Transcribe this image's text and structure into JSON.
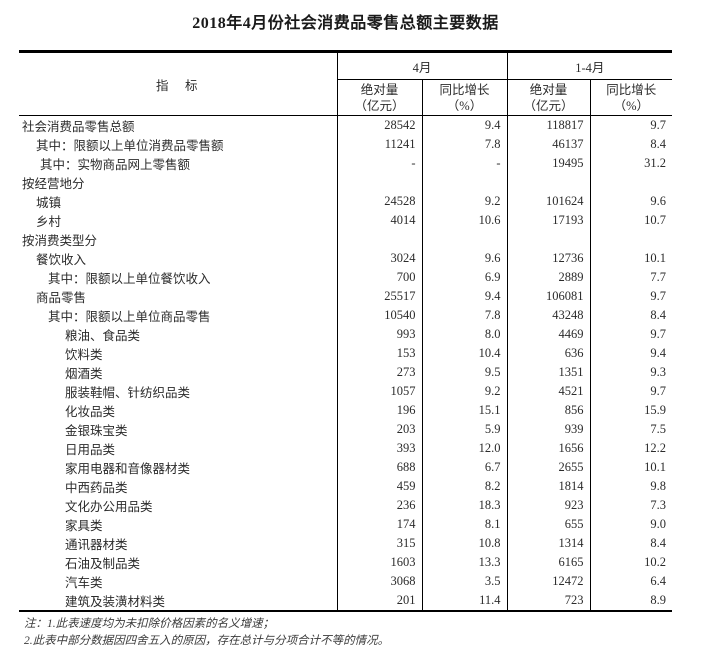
{
  "title": "2018年4月份社会消费品零售总额主要数据",
  "table": {
    "header": {
      "indicator": "指　标",
      "april": "4月",
      "jan_april": "1-4月",
      "sub": {
        "abs_line1": "绝对量",
        "abs_line2": "（亿元）",
        "growth_line1": "同比增长",
        "growth_line2": "（%）"
      }
    },
    "rows": [
      {
        "label": "社会消费品零售总额",
        "indent": 0,
        "cells": [
          "28542",
          "9.4",
          "118817",
          "9.7"
        ]
      },
      {
        "label": "其中：限额以上单位消费品零售额",
        "indent": 1,
        "cells": [
          "11241",
          "7.8",
          "46137",
          "8.4"
        ]
      },
      {
        "label": "其中：实物商品网上零售额",
        "indent": 2,
        "cells": [
          "-",
          "-",
          "19495",
          "31.2"
        ]
      },
      {
        "label": "按经营地分",
        "indent": 0,
        "cells": [
          "",
          "",
          "",
          ""
        ]
      },
      {
        "label": "城镇",
        "indent": 1,
        "cells": [
          "24528",
          "9.2",
          "101624",
          "9.6"
        ]
      },
      {
        "label": "乡村",
        "indent": 1,
        "cells": [
          "4014",
          "10.6",
          "17193",
          "10.7"
        ]
      },
      {
        "label": "按消费类型分",
        "indent": 0,
        "cells": [
          "",
          "",
          "",
          ""
        ]
      },
      {
        "label": "餐饮收入",
        "indent": 1,
        "cells": [
          "3024",
          "9.6",
          "12736",
          "10.1"
        ]
      },
      {
        "label": "其中：限额以上单位餐饮收入",
        "indent": 3,
        "cells": [
          "700",
          "6.9",
          "2889",
          "7.7"
        ]
      },
      {
        "label": "商品零售",
        "indent": 1,
        "cells": [
          "25517",
          "9.4",
          "106081",
          "9.7"
        ]
      },
      {
        "label": "其中：限额以上单位商品零售",
        "indent": 3,
        "cells": [
          "10540",
          "7.8",
          "43248",
          "8.4"
        ]
      },
      {
        "label": "粮油、食品类",
        "indent": 4,
        "cells": [
          "993",
          "8.0",
          "4469",
          "9.7"
        ]
      },
      {
        "label": "饮料类",
        "indent": 4,
        "cells": [
          "153",
          "10.4",
          "636",
          "9.4"
        ]
      },
      {
        "label": "烟酒类",
        "indent": 4,
        "cells": [
          "273",
          "9.5",
          "1351",
          "9.3"
        ]
      },
      {
        "label": "服装鞋帽、针纺织品类",
        "indent": 4,
        "cells": [
          "1057",
          "9.2",
          "4521",
          "9.7"
        ]
      },
      {
        "label": "化妆品类",
        "indent": 4,
        "cells": [
          "196",
          "15.1",
          "856",
          "15.9"
        ]
      },
      {
        "label": "金银珠宝类",
        "indent": 4,
        "cells": [
          "203",
          "5.9",
          "939",
          "7.5"
        ]
      },
      {
        "label": "日用品类",
        "indent": 4,
        "cells": [
          "393",
          "12.0",
          "1656",
          "12.2"
        ]
      },
      {
        "label": "家用电器和音像器材类",
        "indent": 4,
        "cells": [
          "688",
          "6.7",
          "2655",
          "10.1"
        ]
      },
      {
        "label": "中西药品类",
        "indent": 4,
        "cells": [
          "459",
          "8.2",
          "1814",
          "9.8"
        ]
      },
      {
        "label": "文化办公用品类",
        "indent": 4,
        "cells": [
          "236",
          "18.3",
          "923",
          "7.3"
        ]
      },
      {
        "label": "家具类",
        "indent": 4,
        "cells": [
          "174",
          "8.1",
          "655",
          "9.0"
        ]
      },
      {
        "label": "通讯器材类",
        "indent": 4,
        "cells": [
          "315",
          "10.8",
          "1314",
          "8.4"
        ]
      },
      {
        "label": "石油及制品类",
        "indent": 4,
        "cells": [
          "1603",
          "13.3",
          "6165",
          "10.2"
        ]
      },
      {
        "label": "汽车类",
        "indent": 4,
        "cells": [
          "3068",
          "3.5",
          "12472",
          "6.4"
        ]
      },
      {
        "label": "建筑及装潢材料类",
        "indent": 4,
        "cells": [
          "201",
          "11.4",
          "723",
          "8.9"
        ]
      }
    ]
  },
  "notes": {
    "line1": "注：1.此表速度均为未扣除价格因素的名义增速；",
    "line2": "2.此表中部分数据因四舍五入的原因，存在总计与分项合计不等的情况。"
  },
  "colors": {
    "border": "#000000",
    "text": "#2b2b2b",
    "background": "#ffffff"
  }
}
